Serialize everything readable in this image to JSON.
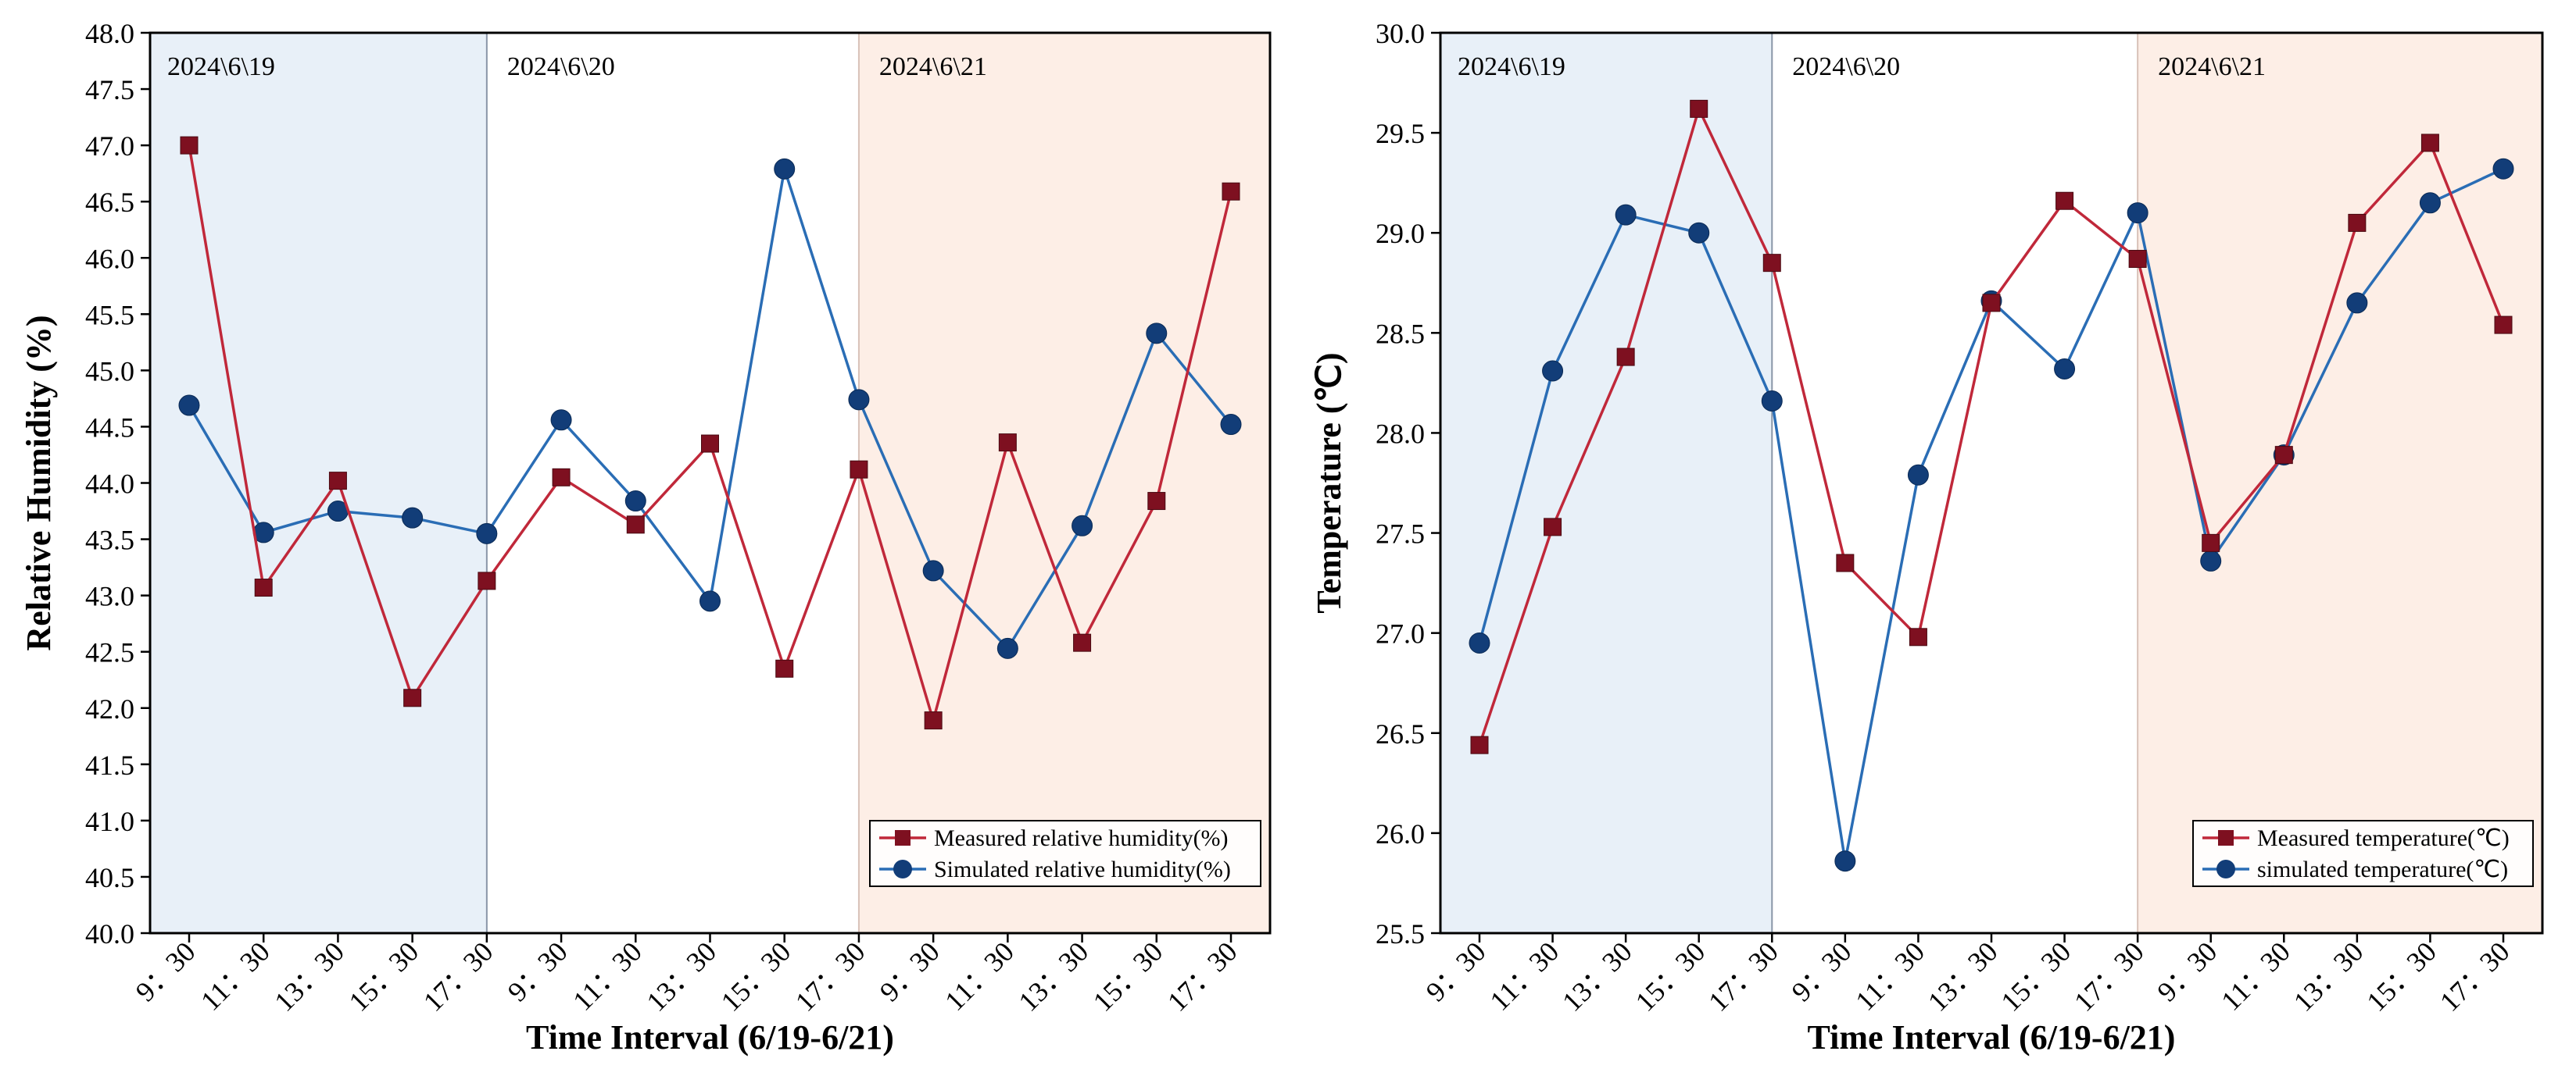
{
  "colors": {
    "measured": "#7e1020",
    "measured_line": "#c0283a",
    "simulated": "#123d78",
    "simulated_line": "#2a6db5",
    "day1_band": "#e8f0f8",
    "day3_band": "#fdeee6"
  },
  "x_tick_labels": [
    "9：30",
    "11：30",
    "13：30",
    "15：30",
    "17：30",
    "9：30",
    "11：30",
    "13：30",
    "15：30",
    "17：30",
    "9：30",
    "11：30",
    "13：30",
    "15：30",
    "17：30"
  ],
  "day_labels": [
    "2024\\6\\19",
    "2024\\6\\20",
    "2024\\6\\21"
  ],
  "chart_data": [
    {
      "type": "line",
      "xlabel": "Time Interval (6/19-6/21)",
      "ylabel": "Relative Humidity (%)",
      "ylim": [
        40.0,
        48.0
      ],
      "ytick_step": 0.5,
      "categories": [
        "9：30",
        "11：30",
        "13：30",
        "15：30",
        "17：30",
        "9：30",
        "11：30",
        "13：30",
        "15：30",
        "17：30",
        "9：30",
        "11：30",
        "13：30",
        "15：30",
        "17：30"
      ],
      "series": [
        {
          "name": "Measured relative humidity(%)",
          "marker": "square",
          "values": [
            47.0,
            43.07,
            44.02,
            42.09,
            43.13,
            44.05,
            43.63,
            44.35,
            42.35,
            44.12,
            41.89,
            44.36,
            42.58,
            43.84,
            46.59
          ]
        },
        {
          "name": "Simulated relative humidity(%)",
          "marker": "circle",
          "values": [
            44.69,
            43.56,
            43.75,
            43.69,
            43.55,
            44.56,
            43.84,
            42.95,
            46.79,
            44.74,
            43.22,
            42.53,
            43.62,
            45.33,
            44.52
          ]
        }
      ],
      "day_bands": [
        "2024\\6\\19",
        "2024\\6\\20",
        "2024\\6\\21"
      ],
      "legend": "bottom-right"
    },
    {
      "type": "line",
      "xlabel": "Time Interval (6/19-6/21)",
      "ylabel": "Temperature (℃)",
      "ylim": [
        25.5,
        30.0
      ],
      "ytick_step": 0.5,
      "categories": [
        "9：30",
        "11：30",
        "13：30",
        "15：30",
        "17：30",
        "9：30",
        "11：30",
        "13：30",
        "15：30",
        "17：30",
        "9：30",
        "11：30",
        "13：30",
        "15：30",
        "17：30"
      ],
      "series": [
        {
          "name": "Measured temperature(℃)",
          "marker": "square",
          "values": [
            26.44,
            27.53,
            28.38,
            29.62,
            28.85,
            27.35,
            26.98,
            28.65,
            29.16,
            28.87,
            27.45,
            27.89,
            29.05,
            29.45,
            28.54
          ]
        },
        {
          "name": "simulated temperature(℃)",
          "marker": "circle",
          "values": [
            26.95,
            28.31,
            29.09,
            29.0,
            28.16,
            25.86,
            27.79,
            28.66,
            28.32,
            29.1,
            27.36,
            27.89,
            28.65,
            29.15,
            29.32
          ]
        }
      ],
      "day_bands": [
        "2024\\6\\19",
        "2024\\6\\20",
        "2024\\6\\21"
      ],
      "legend": "bottom-right"
    }
  ]
}
